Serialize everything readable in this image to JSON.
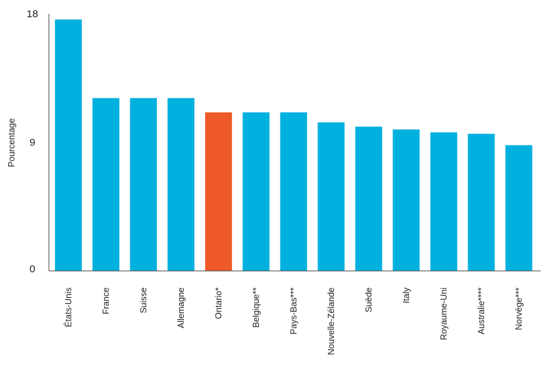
{
  "chart_data": {
    "type": "bar",
    "title": "",
    "xlabel": "",
    "ylabel": "Pourcentage",
    "ylim": [
      0,
      18
    ],
    "yticks": [
      0,
      9,
      18
    ],
    "grid": false,
    "categories": [
      "États-Unis",
      "France",
      "Suisse",
      "Allemagne",
      "Ontario*",
      "Belgique**",
      "Pays-Bas***",
      "Nouvelle-Zélande",
      "Suède",
      "Italy",
      "Royaume-Uni",
      "Australie****",
      "Norvège***"
    ],
    "values": [
      17.6,
      12.1,
      12.1,
      12.1,
      11.1,
      11.1,
      11.1,
      10.4,
      10.1,
      9.9,
      9.7,
      9.6,
      8.8
    ],
    "colors": {
      "default": "#00b0de",
      "highlight": "#ef5a2a",
      "axis": "#444444"
    },
    "highlight_category": "Ontario*"
  }
}
